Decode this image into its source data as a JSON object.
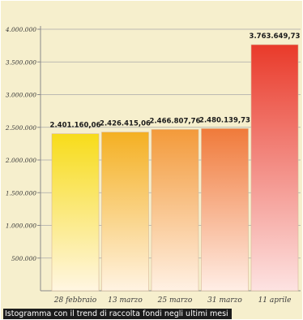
{
  "chart_data": {
    "type": "bar",
    "categories": [
      "28 febbraio",
      "13 marzo",
      "25 marzo",
      "31 marzo",
      "11 aprile"
    ],
    "values": [
      2401160.06,
      2426415.06,
      2466807.76,
      2480139.73,
      3763649.73
    ],
    "value_labels": [
      "2.401.160,06",
      "2.426.415,06",
      "2.466.807,76",
      "2.480.139,73",
      "3.763.649,73"
    ],
    "y_ticks": [
      {
        "value": 500000,
        "label": "500.000"
      },
      {
        "value": 1000000,
        "label": "1.000.000"
      },
      {
        "value": 1500000,
        "label": "1.500.000"
      },
      {
        "value": 2000000,
        "label": "2.000.000"
      },
      {
        "value": 2500000,
        "label": "2.500.000"
      },
      {
        "value": 3000000,
        "label": "3.000.000"
      },
      {
        "value": 3500000,
        "label": "3.500.000"
      },
      {
        "value": 4000000,
        "label": "4.000.000"
      }
    ],
    "ylim": [
      0,
      4000000
    ],
    "title": "",
    "xlabel": "",
    "ylabel": "",
    "grid": true,
    "colors": {
      "background": "#f6efcd",
      "gridline": "#a9a9a9",
      "yellow_top": "#f7dc1a",
      "orange_top": "#f39a3a",
      "red_top": "#e93a2a",
      "bar_bottom": "#fff6e2"
    }
  },
  "caption": "Istogramma con il trend di raccolta fondi negli ultimi mesi"
}
